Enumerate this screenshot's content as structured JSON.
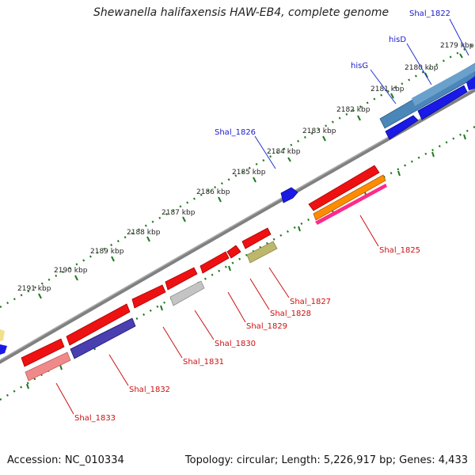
{
  "header": {
    "title": "Shewanella halifaxensis HAW-EB4, complete genome"
  },
  "footer": {
    "accession": "Accession: NC_010334",
    "summary": "Topology: circular; Length: 5,226,917 bp; Genes: 4,433"
  },
  "map": {
    "colors": {
      "backbone": "#808080",
      "tick": "#1f7a1f",
      "top_label": "#1a1acc",
      "bottom_label": "#cc1111",
      "leader_top": "#2233cc",
      "leader_bottom": "#cc1111"
    },
    "kbp_ticks": [
      "2179 kbp",
      "2180 kbp",
      "2181 kbp",
      "2182 kbp",
      "2183 kbp",
      "2184 kbp",
      "2185 kbp",
      "2186 kbp",
      "2187 kbp",
      "2188 kbp",
      "2189 kbp",
      "2190 kbp",
      "2191 kbp"
    ],
    "top_genes": [
      "Shal_1822",
      "hisD",
      "hisG",
      "Shal_1826"
    ],
    "bottom_genes": [
      "Shal_1825",
      "Shal_1827",
      "Shal_1828",
      "Shal_1829",
      "Shal_1830",
      "Shal_1831",
      "Shal_1832",
      "Shal_1833"
    ]
  }
}
